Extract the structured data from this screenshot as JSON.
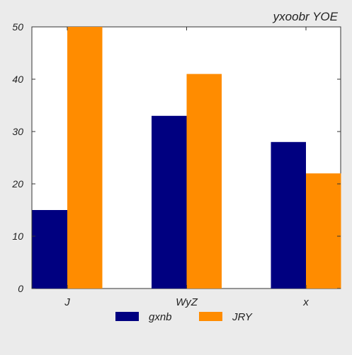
{
  "chart_data": {
    "type": "bar",
    "title": "yxoobr YOE",
    "categories": [
      "J",
      "WyZ",
      "x"
    ],
    "series": [
      {
        "name": "gxnb",
        "values": [
          15,
          33,
          28
        ],
        "color": "#000080"
      },
      {
        "name": "JRY",
        "values": [
          50,
          41,
          22
        ],
        "color": "#ff8c00"
      }
    ],
    "ylim": [
      0,
      50
    ],
    "yticks": [
      0,
      10,
      20,
      30,
      40,
      50
    ],
    "xlabel": "",
    "ylabel": "",
    "grid": false,
    "legend_position": "bottom-center"
  },
  "colors": {
    "background": "#ebebeb",
    "plot_area": "#ffffff",
    "axis": "#333333"
  }
}
